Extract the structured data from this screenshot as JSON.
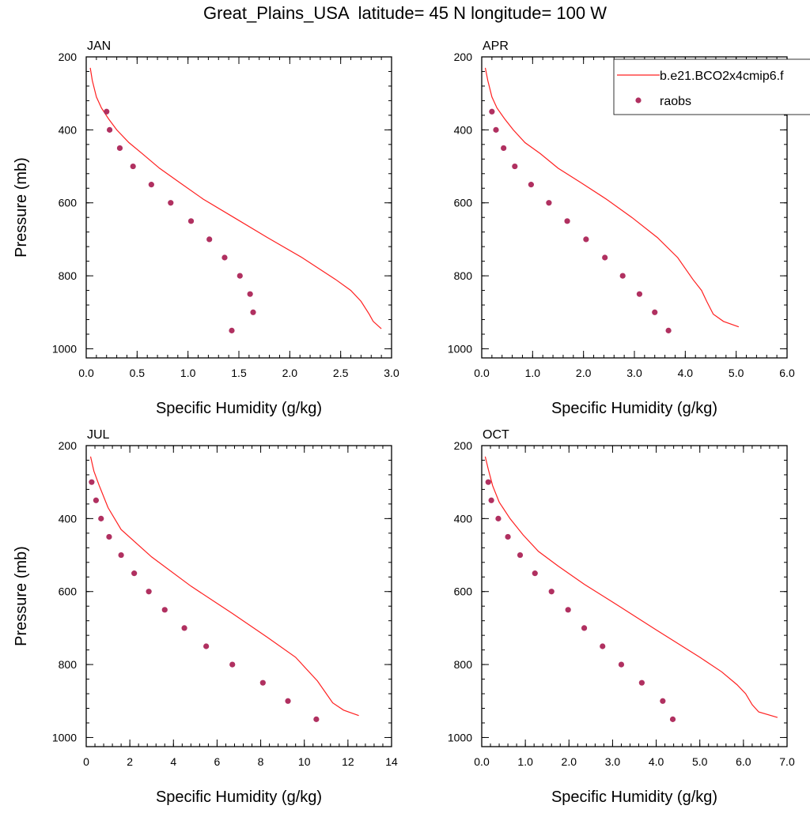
{
  "figure": {
    "title": "Great_Plains_USA  latitude= 45 N longitude= 100 W",
    "legend": {
      "model_label": "b.e21.BCO2x4cmip6.f",
      "obs_label": "raobs",
      "placement": "top-right"
    },
    "colors": {
      "model_line": "#ff2020",
      "obs_marker": "#b03060",
      "axes": "#000000"
    }
  },
  "chart_data": [
    {
      "type": "scatter",
      "panel_label": "JAN",
      "xlabel": "Specific Humidity (g/kg)",
      "ylabel": "Pressure (mb)",
      "xlim": [
        0,
        3.0
      ],
      "ylim": [
        200,
        1025
      ],
      "y_inverted": true,
      "xticks": [
        0,
        0.5,
        1.0,
        1.5,
        2.0,
        2.5,
        3.0
      ],
      "xtick_labels": [
        "0.0",
        "0.5",
        "1.0",
        "1.5",
        "2.0",
        "2.5",
        "3.0"
      ],
      "yticks": [
        200,
        400,
        600,
        800,
        1000
      ],
      "ytick_labels": [
        "200",
        "400",
        "600",
        "800",
        "1000"
      ],
      "grid": false,
      "series": [
        {
          "name": "b.e21.BCO2x4cmip6.f",
          "kind": "line",
          "x": [
            0.04,
            0.06,
            0.1,
            0.15,
            0.22,
            0.3,
            0.42,
            0.55,
            0.72,
            0.92,
            1.15,
            1.45,
            1.78,
            2.12,
            2.45,
            2.6,
            2.7,
            2.78,
            2.82,
            2.9
          ],
          "y": [
            230,
            265,
            310,
            340,
            370,
            400,
            435,
            465,
            505,
            545,
            590,
            640,
            695,
            750,
            810,
            840,
            870,
            905,
            925,
            945
          ]
        },
        {
          "name": "raobs",
          "kind": "scatter",
          "x": [
            0.2,
            0.23,
            0.33,
            0.46,
            0.64,
            0.83,
            1.03,
            1.21,
            1.36,
            1.51,
            1.61,
            1.64,
            1.43
          ],
          "y": [
            350,
            400,
            450,
            500,
            550,
            600,
            650,
            700,
            750,
            800,
            850,
            900,
            950
          ]
        }
      ]
    },
    {
      "type": "scatter",
      "panel_label": "APR",
      "xlabel": "Specific Humidity (g/kg)",
      "ylabel": "",
      "xlim": [
        0,
        6.0
      ],
      "ylim": [
        200,
        1025
      ],
      "y_inverted": true,
      "xticks": [
        0,
        1,
        2,
        3,
        4,
        5,
        6
      ],
      "xtick_labels": [
        "0.0",
        "1.0",
        "2.0",
        "3.0",
        "4.0",
        "5.0",
        "6.0"
      ],
      "yticks": [
        200,
        400,
        600,
        800,
        1000
      ],
      "ytick_labels": [
        "200",
        "400",
        "600",
        "800",
        "1000"
      ],
      "grid": false,
      "series": [
        {
          "name": "b.e21.BCO2x4cmip6.f",
          "kind": "line",
          "x": [
            0.07,
            0.12,
            0.2,
            0.3,
            0.45,
            0.62,
            0.85,
            1.15,
            1.5,
            1.95,
            2.45,
            2.95,
            3.45,
            3.85,
            4.15,
            4.32,
            4.42,
            4.55,
            4.75,
            5.05
          ],
          "y": [
            230,
            265,
            310,
            340,
            370,
            400,
            435,
            465,
            505,
            545,
            590,
            640,
            695,
            750,
            810,
            840,
            870,
            905,
            925,
            940
          ]
        },
        {
          "name": "raobs",
          "kind": "scatter",
          "x": [
            0.2,
            0.28,
            0.43,
            0.65,
            0.97,
            1.32,
            1.68,
            2.05,
            2.42,
            2.77,
            3.1,
            3.4,
            3.67
          ],
          "y": [
            350,
            400,
            450,
            500,
            550,
            600,
            650,
            700,
            750,
            800,
            850,
            900,
            950
          ]
        }
      ]
    },
    {
      "type": "scatter",
      "panel_label": "JUL",
      "xlabel": "Specific Humidity (g/kg)",
      "ylabel": "Pressure (mb)",
      "xlim": [
        0,
        14
      ],
      "ylim": [
        200,
        1025
      ],
      "y_inverted": true,
      "xticks": [
        0,
        2,
        4,
        6,
        8,
        10,
        12,
        14
      ],
      "xtick_labels": [
        "0",
        "2",
        "4",
        "6",
        "8",
        "10",
        "12",
        "14"
      ],
      "yticks": [
        200,
        400,
        600,
        800,
        1000
      ],
      "ytick_labels": [
        "200",
        "400",
        "600",
        "800",
        "1000"
      ],
      "grid": false,
      "series": [
        {
          "name": "b.e21.BCO2x4cmip6.f",
          "kind": "line",
          "x": [
            0.2,
            0.35,
            0.6,
            1.0,
            1.6,
            3.0,
            4.8,
            6.7,
            8.3,
            9.6,
            10.6,
            11.3,
            11.8,
            12.5
          ],
          "y": [
            230,
            270,
            310,
            370,
            430,
            505,
            585,
            660,
            725,
            780,
            845,
            905,
            925,
            940
          ]
        },
        {
          "name": "raobs",
          "kind": "scatter",
          "x": [
            0.25,
            0.45,
            0.68,
            1.05,
            1.6,
            2.2,
            2.87,
            3.6,
            4.5,
            5.5,
            6.7,
            8.1,
            9.25,
            10.55
          ],
          "y": [
            300,
            350,
            400,
            450,
            500,
            550,
            600,
            650,
            700,
            750,
            800,
            850,
            900,
            950
          ]
        }
      ]
    },
    {
      "type": "scatter",
      "panel_label": "OCT",
      "xlabel": "Specific Humidity (g/kg)",
      "ylabel": "",
      "xlim": [
        0,
        7.0
      ],
      "ylim": [
        200,
        1025
      ],
      "y_inverted": true,
      "xticks": [
        0,
        1,
        2,
        3,
        4,
        5,
        6,
        7
      ],
      "xtick_labels": [
        "0.0",
        "1.0",
        "2.0",
        "3.0",
        "4.0",
        "5.0",
        "6.0",
        "7.0"
      ],
      "yticks": [
        200,
        400,
        600,
        800,
        1000
      ],
      "ytick_labels": [
        "200",
        "400",
        "600",
        "800",
        "1000"
      ],
      "grid": false,
      "series": [
        {
          "name": "b.e21.BCO2x4cmip6.f",
          "kind": "line",
          "x": [
            0.08,
            0.15,
            0.25,
            0.4,
            0.65,
            0.95,
            1.3,
            1.75,
            2.35,
            3.15,
            4.0,
            5.0,
            5.5,
            5.85,
            6.05,
            6.2,
            6.35,
            6.78
          ],
          "y": [
            230,
            265,
            310,
            355,
            400,
            445,
            490,
            530,
            580,
            640,
            705,
            780,
            820,
            855,
            880,
            910,
            930,
            945
          ]
        },
        {
          "name": "raobs",
          "kind": "scatter",
          "x": [
            0.15,
            0.22,
            0.38,
            0.6,
            0.88,
            1.22,
            1.6,
            1.98,
            2.35,
            2.77,
            3.2,
            3.67,
            4.15,
            4.38
          ],
          "y": [
            300,
            350,
            400,
            450,
            500,
            550,
            600,
            650,
            700,
            750,
            800,
            850,
            900,
            950
          ]
        }
      ]
    }
  ]
}
